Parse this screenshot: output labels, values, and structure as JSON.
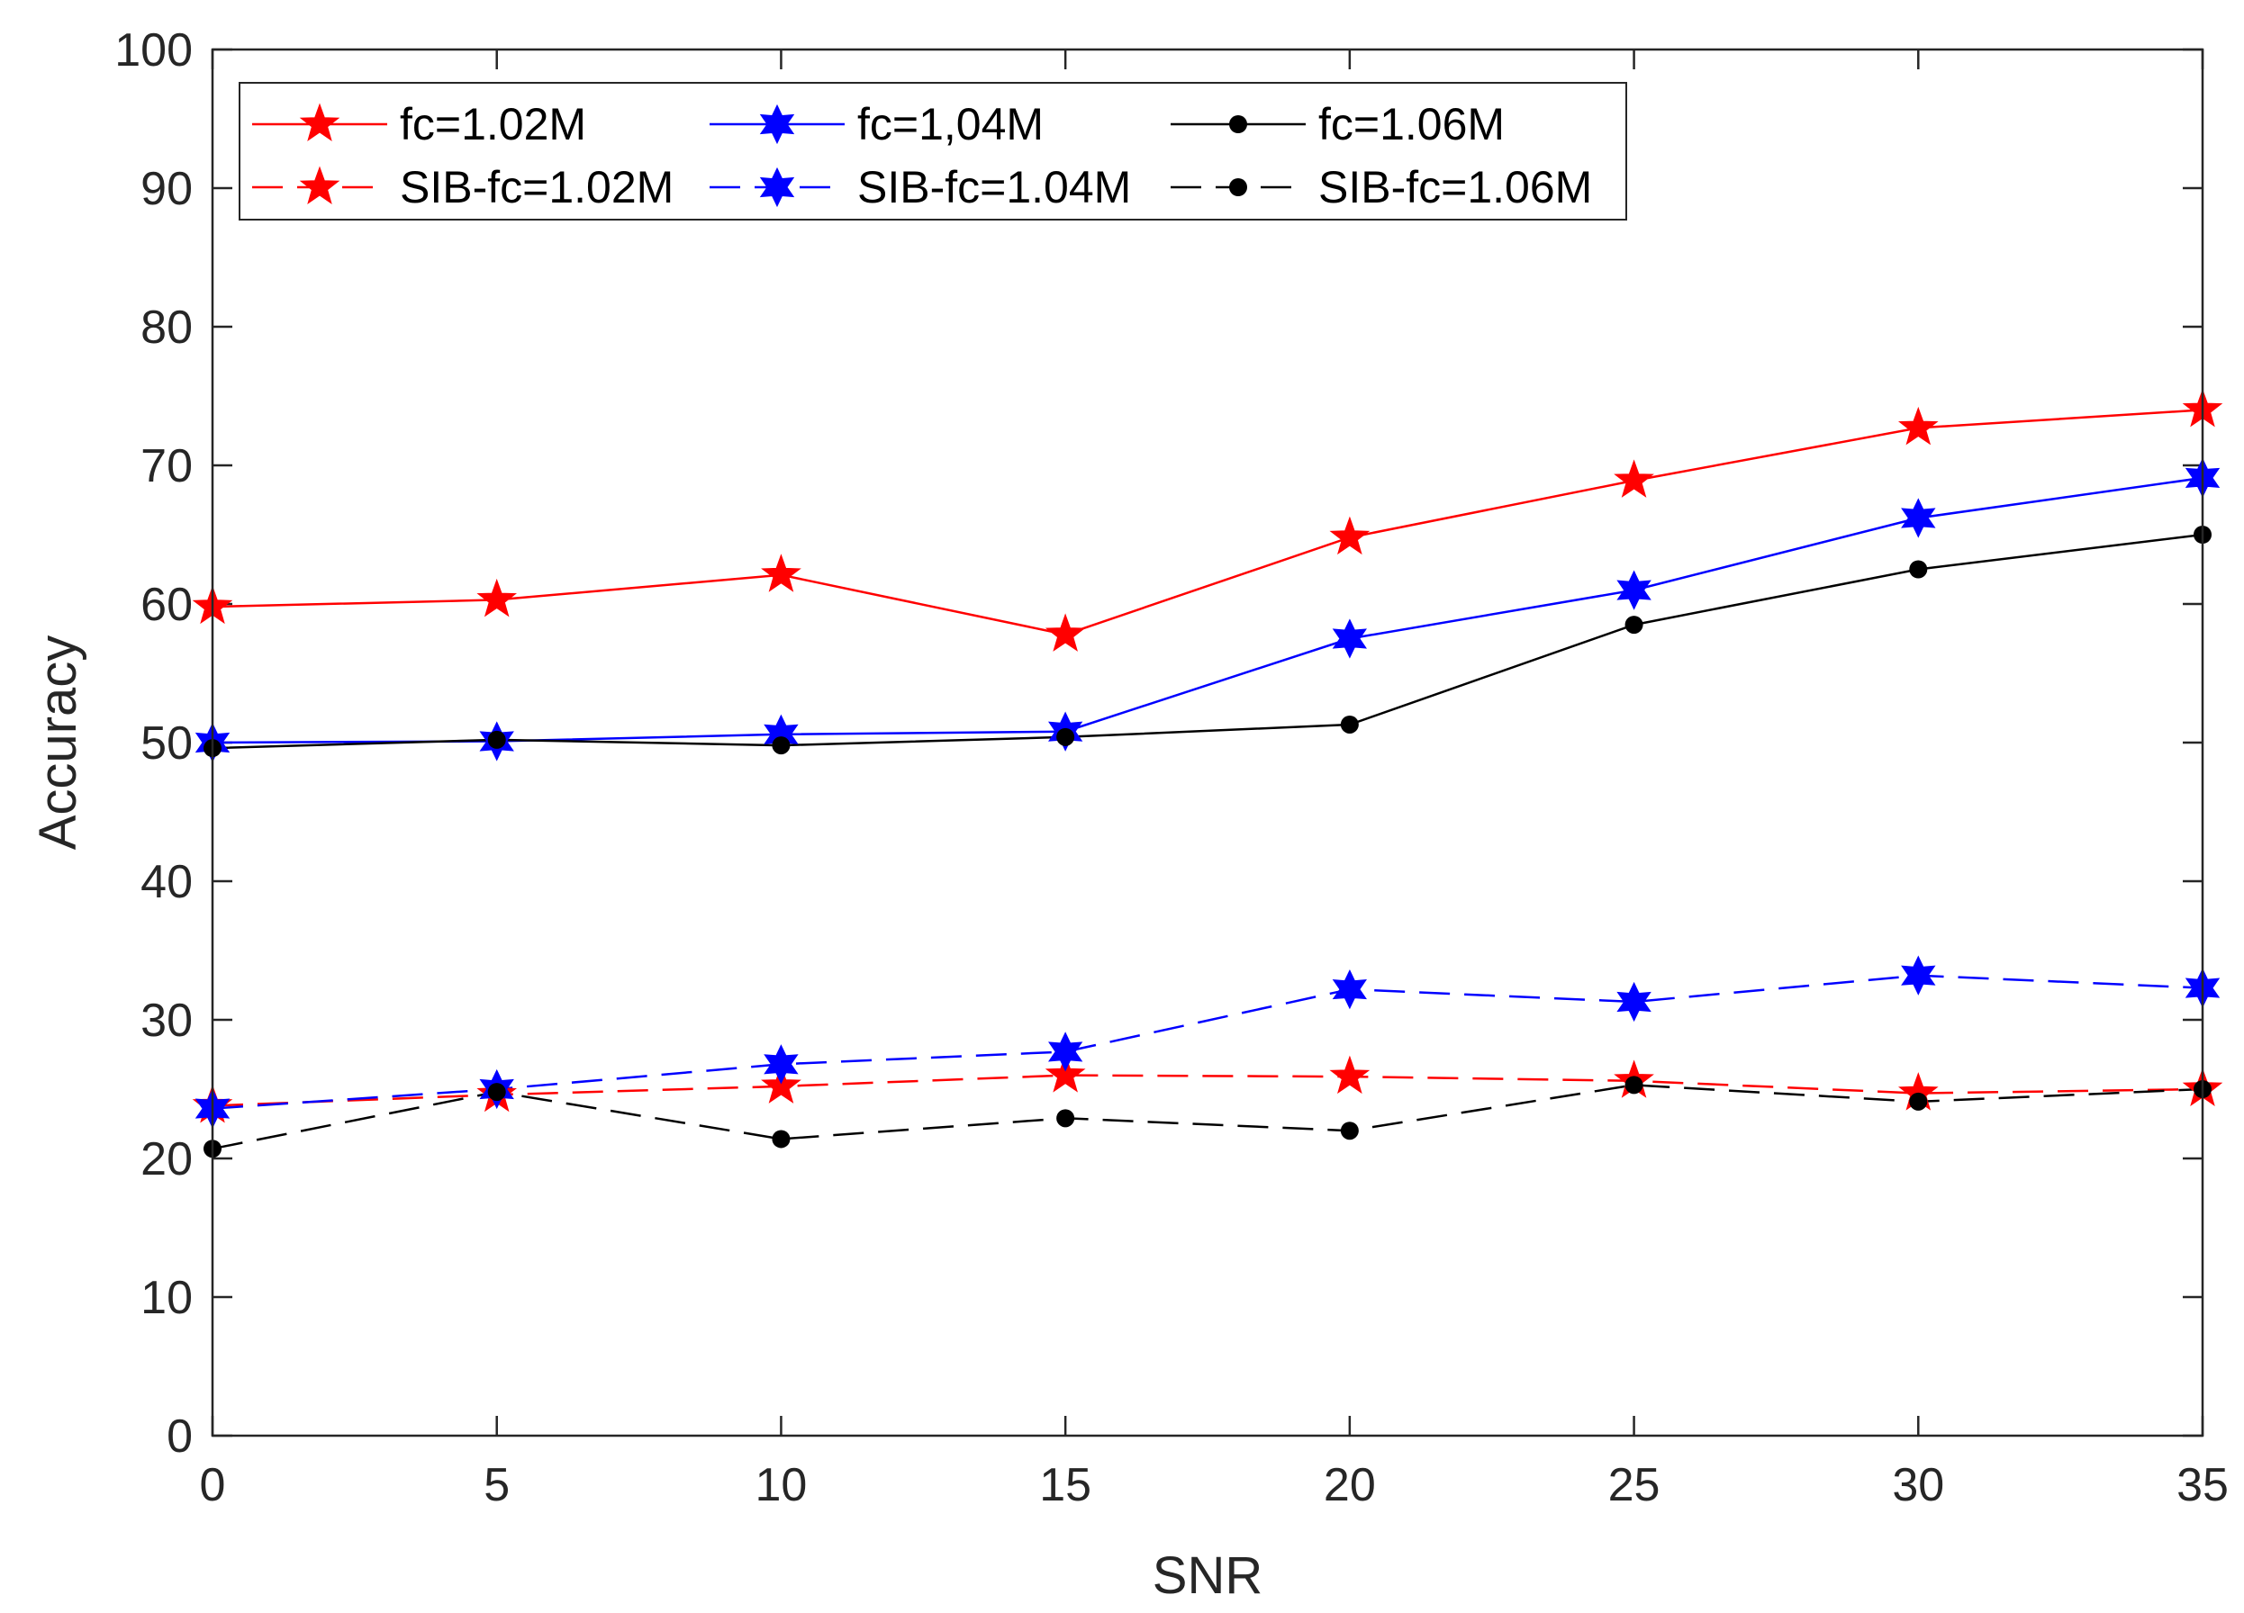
{
  "chart_data": {
    "type": "line",
    "title": "",
    "xlabel": "SNR",
    "ylabel": "Accuracy",
    "xlim": [
      0,
      35
    ],
    "ylim": [
      0,
      100
    ],
    "xticks": [
      0,
      5,
      10,
      15,
      20,
      25,
      30,
      35
    ],
    "yticks": [
      0,
      10,
      20,
      30,
      40,
      50,
      60,
      70,
      80,
      90,
      100
    ],
    "x": [
      0,
      5,
      10,
      15,
      20,
      25,
      30,
      35
    ],
    "legend_position": "top-left",
    "series": [
      {
        "name": "fc=1.02M",
        "color": "#ff0000",
        "style": "solid",
        "marker": "star5",
        "values": [
          59.8,
          60.3,
          62.1,
          57.8,
          64.8,
          68.9,
          72.7,
          74.0
        ]
      },
      {
        "name": "fc=1,04M",
        "color": "#0000ff",
        "style": "solid",
        "marker": "star6",
        "values": [
          50.0,
          50.1,
          50.6,
          50.8,
          57.5,
          61.0,
          66.2,
          69.1
        ]
      },
      {
        "name": "fc=1.06M",
        "color": "#000000",
        "style": "solid",
        "marker": "dot",
        "values": [
          49.6,
          50.2,
          49.8,
          50.4,
          51.3,
          58.5,
          62.5,
          65.0
        ]
      },
      {
        "name": "SIB-fc=1.02M",
        "color": "#ff0000",
        "style": "dashed",
        "marker": "star5",
        "values": [
          23.8,
          24.6,
          25.2,
          26.0,
          25.9,
          25.6,
          24.7,
          25.0
        ]
      },
      {
        "name": "SIB-fc=1.04M",
        "color": "#0000ff",
        "style": "dashed",
        "marker": "star6",
        "values": [
          23.6,
          25.0,
          26.8,
          27.7,
          32.2,
          31.3,
          33.2,
          32.3
        ]
      },
      {
        "name": "SIB-fc=1.06M",
        "color": "#000000",
        "style": "dashed",
        "marker": "dot",
        "values": [
          20.7,
          24.8,
          21.4,
          22.9,
          22.0,
          25.3,
          24.1,
          25.0
        ]
      }
    ]
  }
}
